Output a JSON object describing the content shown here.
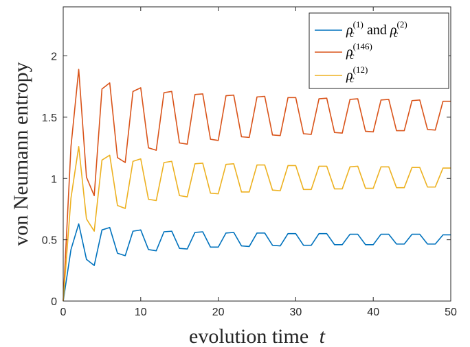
{
  "chart_data": {
    "type": "line",
    "xlabel_prefix": "evolution time",
    "xlabel_var": "t",
    "ylabel": "von Neumann entropy",
    "xlim": [
      0,
      50
    ],
    "ylim": [
      0,
      2.4
    ],
    "xticks": [
      0,
      10,
      20,
      30,
      40,
      50
    ],
    "yticks": [
      0,
      0.5,
      1,
      1.5,
      2
    ],
    "ytick_labels": [
      "0",
      "0.5",
      "1",
      "1.5",
      "2"
    ],
    "grid": false,
    "legend_position": "top-right",
    "legend": [
      {
        "series": 0,
        "parts": [
          [
            "ρ",
            "c",
            "(1)"
          ],
          [
            " and "
          ],
          [
            "ρ",
            "c",
            "(2)"
          ]
        ]
      },
      {
        "series": 1,
        "parts": [
          [
            "ρ",
            "c",
            "(146)"
          ]
        ]
      },
      {
        "series": 2,
        "parts": [
          [
            "ρ",
            "c",
            "(12)"
          ]
        ]
      }
    ],
    "colors": [
      "#0072BD",
      "#D95319",
      "#EDB120"
    ],
    "series": [
      {
        "x": [
          0,
          1,
          2,
          3,
          4,
          5,
          6,
          7,
          8,
          9,
          10,
          11,
          12,
          13,
          14,
          15,
          16,
          17,
          18,
          19,
          20,
          21,
          22,
          23,
          24,
          25,
          26,
          27,
          28,
          29,
          30,
          31,
          32,
          33,
          34,
          35,
          36,
          37,
          38,
          39,
          40,
          41,
          42,
          43,
          44,
          45,
          46,
          47,
          48,
          49,
          50
        ],
        "values": [
          0,
          0.42,
          0.63,
          0.34,
          0.29,
          0.58,
          0.6,
          0.39,
          0.37,
          0.57,
          0.58,
          0.42,
          0.41,
          0.565,
          0.57,
          0.43,
          0.425,
          0.56,
          0.565,
          0.44,
          0.44,
          0.555,
          0.56,
          0.45,
          0.445,
          0.555,
          0.555,
          0.455,
          0.45,
          0.55,
          0.55,
          0.455,
          0.455,
          0.55,
          0.55,
          0.46,
          0.46,
          0.545,
          0.545,
          0.46,
          0.46,
          0.545,
          0.545,
          0.465,
          0.465,
          0.545,
          0.545,
          0.465,
          0.465,
          0.54,
          0.54
        ]
      },
      {
        "x": [
          0,
          1,
          2,
          3,
          4,
          5,
          6,
          7,
          8,
          9,
          10,
          11,
          12,
          13,
          14,
          15,
          16,
          17,
          18,
          19,
          20,
          21,
          22,
          23,
          24,
          25,
          26,
          27,
          28,
          29,
          30,
          31,
          32,
          33,
          34,
          35,
          36,
          37,
          38,
          39,
          40,
          41,
          42,
          43,
          44,
          45,
          46,
          47,
          48,
          49,
          50
        ],
        "values": [
          0,
          1.26,
          1.89,
          1.01,
          0.86,
          1.73,
          1.78,
          1.17,
          1.13,
          1.71,
          1.74,
          1.25,
          1.23,
          1.7,
          1.71,
          1.29,
          1.28,
          1.685,
          1.69,
          1.32,
          1.31,
          1.675,
          1.68,
          1.34,
          1.335,
          1.665,
          1.67,
          1.355,
          1.35,
          1.66,
          1.66,
          1.365,
          1.36,
          1.65,
          1.655,
          1.375,
          1.37,
          1.645,
          1.65,
          1.385,
          1.38,
          1.64,
          1.645,
          1.39,
          1.39,
          1.635,
          1.64,
          1.4,
          1.395,
          1.63,
          1.63
        ]
      },
      {
        "x": [
          0,
          1,
          2,
          3,
          4,
          5,
          6,
          7,
          8,
          9,
          10,
          11,
          12,
          13,
          14,
          15,
          16,
          17,
          18,
          19,
          20,
          21,
          22,
          23,
          24,
          25,
          26,
          27,
          28,
          29,
          30,
          31,
          32,
          33,
          34,
          35,
          36,
          37,
          38,
          39,
          40,
          41,
          42,
          43,
          44,
          45,
          46,
          47,
          48,
          49,
          50
        ],
        "values": [
          0,
          0.84,
          1.26,
          0.67,
          0.57,
          1.15,
          1.19,
          0.78,
          0.755,
          1.14,
          1.16,
          0.83,
          0.82,
          1.13,
          1.14,
          0.86,
          0.85,
          1.12,
          1.125,
          0.88,
          0.875,
          1.115,
          1.12,
          0.89,
          0.89,
          1.11,
          1.11,
          0.905,
          0.9,
          1.105,
          1.105,
          0.91,
          0.91,
          1.1,
          1.1,
          0.915,
          0.915,
          1.095,
          1.1,
          0.92,
          0.92,
          1.095,
          1.095,
          0.925,
          0.925,
          1.09,
          1.09,
          0.93,
          0.93,
          1.085,
          1.085
        ]
      }
    ]
  }
}
